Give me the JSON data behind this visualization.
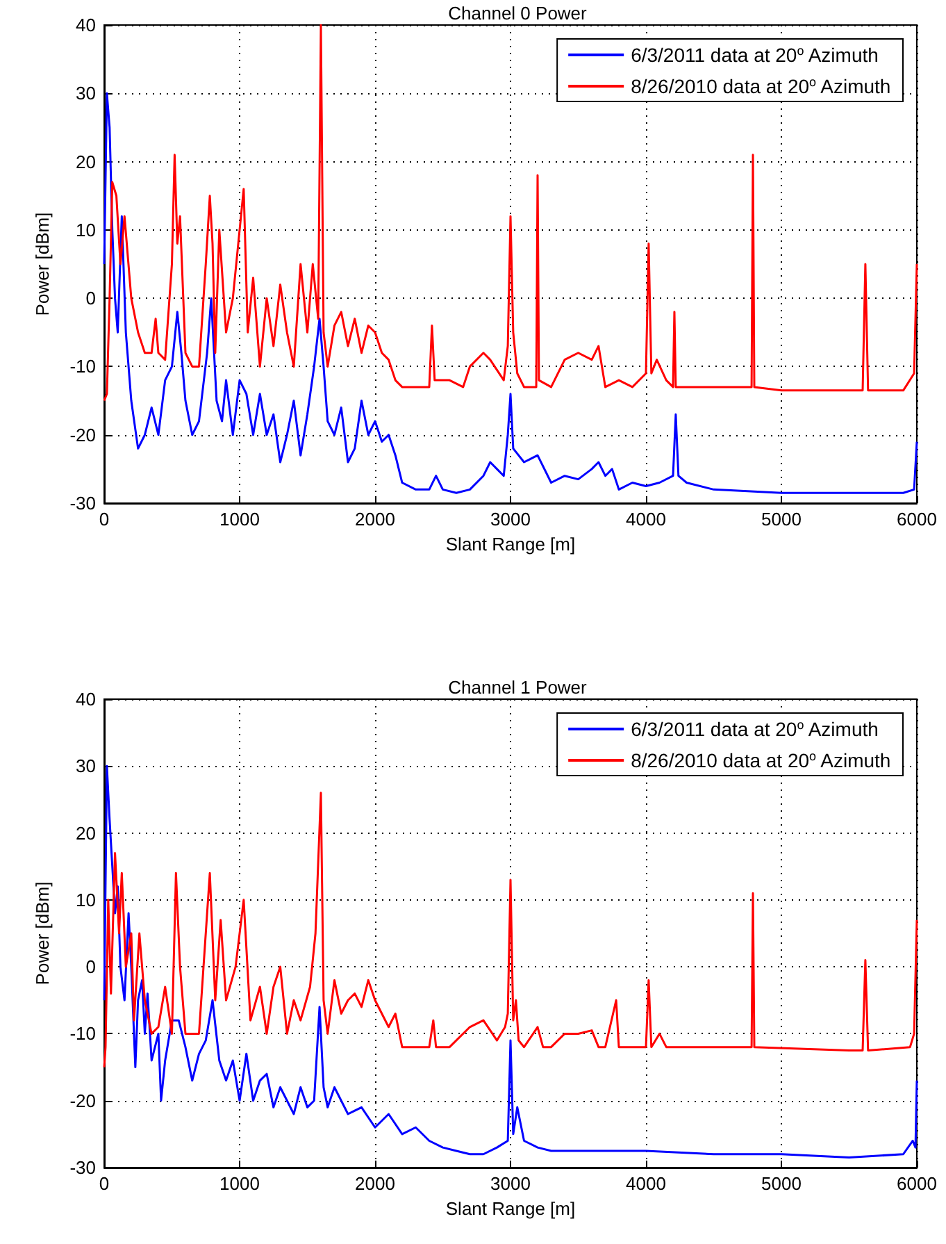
{
  "chart_data": [
    {
      "type": "line",
      "title": "Channel 0 Power",
      "xlabel": "Slant Range [m]",
      "ylabel": "Power [dBm]",
      "xlim": [
        0,
        6000
      ],
      "xticks": [
        0,
        1000,
        2000,
        3000,
        4000,
        5000,
        6000
      ],
      "ylim": [
        -30,
        40
      ],
      "yticks": [
        -30,
        -20,
        -10,
        0,
        10,
        20,
        30,
        40
      ],
      "grid": true,
      "legend": "top right",
      "marker": "none",
      "line_style": "solid",
      "series": [
        {
          "name": "6/3/2011 data at 20$^{o}$ Azimuth",
          "color": "#0000ff",
          "x": [
            0,
            20,
            40,
            60,
            80,
            100,
            130,
            160,
            200,
            250,
            300,
            350,
            400,
            450,
            500,
            540,
            570,
            600,
            650,
            700,
            760,
            790,
            830,
            870,
            900,
            950,
            1000,
            1050,
            1100,
            1150,
            1200,
            1250,
            1300,
            1350,
            1400,
            1450,
            1500,
            1550,
            1590,
            1620,
            1650,
            1700,
            1750,
            1800,
            1850,
            1900,
            1950,
            2000,
            2050,
            2100,
            2150,
            2200,
            2300,
            2400,
            2450,
            2500,
            2600,
            2700,
            2800,
            2850,
            2900,
            2950,
            2980,
            3000,
            3020,
            3100,
            3200,
            3300,
            3400,
            3500,
            3600,
            3650,
            3700,
            3750,
            3800,
            3900,
            4000,
            4100,
            4200,
            4220,
            4240,
            4300,
            4500,
            5000,
            5500,
            5900,
            5980,
            6000
          ],
          "values": [
            5,
            30,
            25,
            10,
            0,
            -5,
            12,
            -5,
            -15,
            -22,
            -20,
            -16,
            -20,
            -12,
            -10,
            -2,
            -8,
            -15,
            -20,
            -18,
            -8,
            0,
            -15,
            -18,
            -12,
            -20,
            -12,
            -14,
            -20,
            -14,
            -20,
            -17,
            -24,
            -20,
            -15,
            -23,
            -17,
            -10,
            -3,
            -10,
            -18,
            -20,
            -16,
            -24,
            -22,
            -15,
            -20,
            -18,
            -21,
            -20,
            -23,
            -27,
            -28,
            -28,
            -26,
            -28,
            -28.5,
            -28,
            -26,
            -24,
            -25,
            -26,
            -20,
            -14,
            -22,
            -24,
            -23,
            -27,
            -26,
            -26.5,
            -25,
            -24,
            -26,
            -25,
            -28,
            -27,
            -27.5,
            -27,
            -26,
            -17,
            -26,
            -27,
            -28,
            -28.5,
            -28.5,
            -28.5,
            -28,
            -21
          ]
        },
        {
          "name": "8/26/2010 data at 20$^{o}$ Azimuth",
          "color": "#ff0000",
          "x": [
            0,
            20,
            40,
            60,
            90,
            120,
            150,
            200,
            250,
            300,
            350,
            380,
            400,
            450,
            500,
            520,
            540,
            560,
            600,
            650,
            700,
            750,
            780,
            800,
            820,
            850,
            900,
            950,
            1030,
            1060,
            1100,
            1150,
            1200,
            1250,
            1300,
            1350,
            1400,
            1450,
            1500,
            1540,
            1580,
            1600,
            1620,
            1650,
            1700,
            1750,
            1800,
            1850,
            1900,
            1950,
            2000,
            2050,
            2100,
            2150,
            2200,
            2300,
            2400,
            2420,
            2440,
            2550,
            2650,
            2700,
            2800,
            2850,
            2950,
            2980,
            3000,
            3020,
            3050,
            3100,
            3190,
            3200,
            3210,
            3300,
            3400,
            3500,
            3600,
            3650,
            3700,
            3800,
            3900,
            4000,
            4020,
            4040,
            4080,
            4150,
            4200,
            4210,
            4220,
            4400,
            4780,
            4790,
            4800,
            5000,
            5400,
            5600,
            5620,
            5640,
            5900,
            5980,
            6000
          ],
          "values": [
            -15,
            -14,
            0,
            17,
            15,
            5,
            12,
            0,
            -5,
            -8,
            -8,
            -3,
            -8,
            -9,
            5,
            21,
            8,
            12,
            -8,
            -10,
            -10,
            5,
            15,
            8,
            -8,
            10,
            -5,
            0,
            16,
            -5,
            3,
            -10,
            0,
            -7,
            2,
            -5,
            -10,
            5,
            -5,
            5,
            -3,
            40,
            -5,
            -10,
            -4,
            -2,
            -7,
            -3,
            -8,
            -4,
            -5,
            -8,
            -9,
            -12,
            -13,
            -13,
            -13,
            -4,
            -12,
            -12,
            -13,
            -10,
            -8,
            -9,
            -12,
            -7,
            12,
            -5,
            -11,
            -13,
            -13,
            18,
            -12,
            -13,
            -9,
            -8,
            -9,
            -7,
            -13,
            -12,
            -13,
            -11,
            8,
            -11,
            -9,
            -12,
            -13,
            -2,
            -13,
            -13,
            -13,
            21,
            -13,
            -13.5,
            -13.5,
            -13.5,
            5,
            -13.5,
            -13.5,
            -11,
            5
          ]
        }
      ]
    },
    {
      "type": "line",
      "title": "Channel 1 Power",
      "xlabel": "Slant Range [m]",
      "ylabel": "Power [dBm]",
      "xlim": [
        0,
        6000
      ],
      "xticks": [
        0,
        1000,
        2000,
        3000,
        4000,
        5000,
        6000
      ],
      "ylim": [
        -30,
        40
      ],
      "yticks": [
        -30,
        -20,
        -10,
        0,
        10,
        20,
        30,
        40
      ],
      "grid": true,
      "legend": "top right",
      "marker": "none",
      "line_style": "solid",
      "series": [
        {
          "name": "6/3/2011 data at 20$^{o}$ Azimuth",
          "color": "#0000ff",
          "x": [
            0,
            20,
            40,
            60,
            80,
            100,
            120,
            150,
            180,
            200,
            230,
            250,
            280,
            300,
            320,
            350,
            400,
            420,
            450,
            500,
            550,
            600,
            650,
            700,
            750,
            800,
            850,
            900,
            950,
            1000,
            1050,
            1100,
            1150,
            1200,
            1250,
            1300,
            1350,
            1400,
            1450,
            1500,
            1550,
            1590,
            1620,
            1650,
            1700,
            1800,
            1900,
            2000,
            2100,
            2200,
            2300,
            2400,
            2500,
            2600,
            2700,
            2800,
            2900,
            2980,
            3000,
            3020,
            3050,
            3100,
            3200,
            3300,
            3500,
            4000,
            4500,
            5000,
            5500,
            5900,
            5970,
            5990,
            6000
          ],
          "values": [
            -5,
            30,
            22,
            15,
            8,
            12,
            0,
            -5,
            8,
            0,
            -15,
            -5,
            -2,
            -10,
            -4,
            -14,
            -10,
            -20,
            -14,
            -8,
            -8,
            -12,
            -17,
            -13,
            -11,
            -5,
            -14,
            -17,
            -14,
            -20,
            -13,
            -20,
            -17,
            -16,
            -21,
            -18,
            -20,
            -22,
            -18,
            -21,
            -20,
            -6,
            -18,
            -21,
            -18,
            -22,
            -21,
            -24,
            -22,
            -25,
            -24,
            -26,
            -27,
            -27.5,
            -28,
            -28,
            -27,
            -26,
            -11,
            -25,
            -21,
            -26,
            -27,
            -27.5,
            -27.5,
            -27.5,
            -28,
            -28,
            -28.5,
            -28,
            -26,
            -27,
            -17
          ]
        },
        {
          "name": "8/26/2010 data at 20$^{o}$ Azimuth",
          "color": "#ff0000",
          "x": [
            0,
            10,
            30,
            50,
            80,
            110,
            130,
            160,
            200,
            220,
            260,
            300,
            350,
            400,
            450,
            500,
            530,
            560,
            600,
            650,
            700,
            780,
            820,
            860,
            900,
            970,
            1030,
            1080,
            1150,
            1200,
            1250,
            1300,
            1350,
            1400,
            1450,
            1520,
            1560,
            1600,
            1620,
            1650,
            1700,
            1750,
            1800,
            1850,
            1900,
            1950,
            2000,
            2100,
            2150,
            2200,
            2300,
            2400,
            2430,
            2450,
            2550,
            2700,
            2800,
            2900,
            2960,
            2980,
            3000,
            3020,
            3040,
            3060,
            3100,
            3200,
            3240,
            3300,
            3400,
            3500,
            3600,
            3650,
            3700,
            3780,
            3800,
            4000,
            4020,
            4040,
            4100,
            4150,
            4500,
            4780,
            4790,
            4800,
            5500,
            5600,
            5620,
            5640,
            5950,
            5980,
            6000
          ],
          "values": [
            -15,
            -12,
            10,
            -4,
            17,
            5,
            14,
            0,
            5,
            -8,
            5,
            -5,
            -10,
            -9,
            -3,
            -10,
            14,
            0,
            -10,
            -10,
            -10,
            14,
            -5,
            7,
            -5,
            0,
            10,
            -8,
            -3,
            -10,
            -3,
            0,
            -10,
            -5,
            -8,
            -3,
            5,
            26,
            -5,
            -10,
            -2,
            -7,
            -5,
            -4,
            -6,
            -2,
            -5,
            -9,
            -7,
            -12,
            -12,
            -12,
            -8,
            -12,
            -12,
            -9,
            -8,
            -11,
            -9,
            -7,
            13,
            -8,
            -5,
            -11,
            -12,
            -9,
            -12,
            -12,
            -10,
            -10,
            -9.5,
            -12,
            -12,
            -5,
            -12,
            -12,
            -2,
            -12,
            -10,
            -12,
            -12,
            -12,
            11,
            -12,
            -12.5,
            -12.5,
            1,
            -12.5,
            -12,
            -10,
            7
          ]
        }
      ]
    }
  ]
}
